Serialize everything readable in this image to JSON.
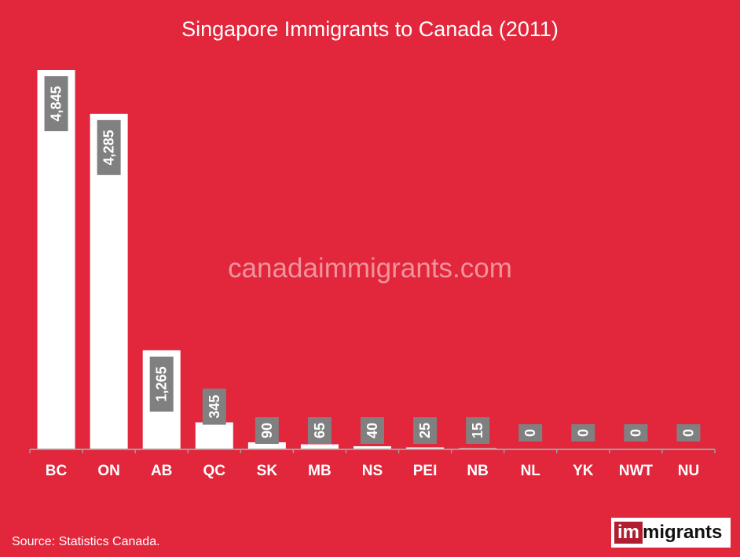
{
  "colors": {
    "background": "#e2263b",
    "bar": "#ffffff",
    "label_box": "#808080",
    "label_text": "#ffffff",
    "axis": "#9e9e9e",
    "watermark": "#f2939d"
  },
  "watermark": "canadaimmigrants.com",
  "source": "Source: Statistics Canada.",
  "logo": {
    "part1": "im",
    "part2": "migrants"
  },
  "chart_data": {
    "type": "bar",
    "title": "Singapore Immigrants to Canada (2011)",
    "xlabel": "",
    "ylabel": "",
    "categories": [
      "BC",
      "ON",
      "AB",
      "QC",
      "SK",
      "MB",
      "NS",
      "PEI",
      "NB",
      "NL",
      "YK",
      "NWT",
      "NU"
    ],
    "values": [
      4845,
      4285,
      1265,
      345,
      90,
      65,
      40,
      25,
      15,
      0,
      0,
      0,
      0
    ],
    "value_labels": [
      "4,845",
      "4,285",
      "1,265",
      "345",
      "90",
      "65",
      "40",
      "25",
      "15",
      "0",
      "0",
      "0",
      "0"
    ],
    "ylim": [
      0,
      4845
    ],
    "grid": false,
    "legend": "none"
  }
}
